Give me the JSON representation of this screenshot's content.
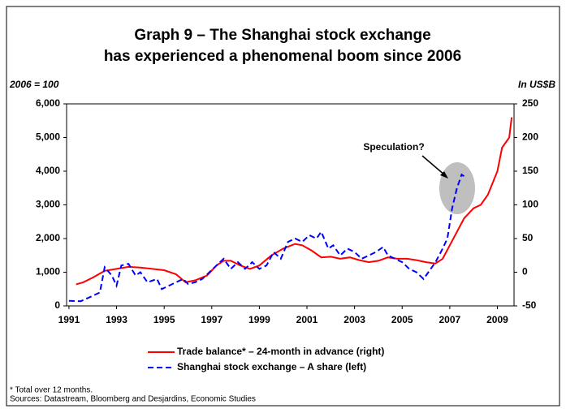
{
  "chart_data": {
    "type": "line",
    "title": "Graph 9 – The Shanghai stock exchange",
    "subtitle": "has experienced a phenomenal boom since 2006",
    "y_label": "2006 = 100",
    "y2_label": "In US$B",
    "annotation": "Speculation?",
    "footnote": "* Total over 12 months.",
    "source": "Sources: Datastream, Bloomberg and Desjardins, Economic Studies",
    "xlim": [
      1990.9,
      2009.7
    ],
    "xticks": [
      1991,
      1993,
      1995,
      1997,
      1999,
      2001,
      2003,
      2005,
      2007,
      2009
    ],
    "ylim": [
      0,
      6000
    ],
    "yticks": [
      0,
      {
        "value": 1000,
        "label": "1,000"
      },
      {
        "value": 2000,
        "label": "2,000"
      },
      {
        "value": 3000,
        "label": "3,000"
      },
      {
        "value": 4000,
        "label": "4,000"
      },
      {
        "value": 5000,
        "label": "5,000"
      },
      {
        "value": 6000,
        "label": "6,000"
      }
    ],
    "y2lim": [
      -50,
      250
    ],
    "y2ticks": [
      -50,
      0,
      50,
      100,
      150,
      200,
      250
    ],
    "series": [
      {
        "name": "Trade balance* – 24-month in advance (right)",
        "color": "#ff0000",
        "axis": "y2",
        "dash": false,
        "x": [
          1991.3,
          1991.6,
          1992.0,
          1992.5,
          1993.0,
          1993.5,
          1994.0,
          1994.5,
          1995.0,
          1995.5,
          1995.9,
          1996.3,
          1996.8,
          1997.2,
          1997.5,
          1997.8,
          1998.2,
          1998.6,
          1999.0,
          1999.5,
          2000.0,
          2000.5,
          2000.8,
          2001.2,
          2001.6,
          2002.0,
          2002.4,
          2002.8,
          2003.2,
          2003.6,
          2004.0,
          2004.4,
          2004.8,
          2005.2,
          2005.6,
          2006.0,
          2006.4,
          2006.7,
          2007.0,
          2007.3,
          2007.6,
          2008.0,
          2008.3,
          2008.6,
          2009.0,
          2009.2,
          2009.5,
          2009.6
        ],
        "values": [
          -18,
          -15,
          -8,
          2,
          5,
          8,
          7,
          5,
          3,
          -3,
          -15,
          -12,
          -5,
          10,
          17,
          17,
          10,
          5,
          10,
          25,
          35,
          42,
          40,
          32,
          22,
          23,
          20,
          22,
          18,
          15,
          17,
          22,
          20,
          20,
          18,
          15,
          13,
          20,
          40,
          60,
          80,
          95,
          100,
          115,
          150,
          185,
          200,
          230
        ]
      },
      {
        "name": "Shanghai stock exchange – A share (left)",
        "color": "#0000ff",
        "axis": "y",
        "dash": true,
        "x": [
          1991.0,
          1991.5,
          1992.0,
          1992.3,
          1992.5,
          1992.8,
          1993.0,
          1993.2,
          1993.5,
          1993.8,
          1994.0,
          1994.3,
          1994.7,
          1994.9,
          1995.2,
          1995.5,
          1995.8,
          1996.0,
          1996.3,
          1996.6,
          1996.9,
          1997.2,
          1997.5,
          1997.8,
          1998.1,
          1998.4,
          1998.7,
          1999.0,
          1999.3,
          1999.6,
          1999.9,
          2000.2,
          2000.5,
          2000.8,
          2001.1,
          2001.4,
          2001.6,
          2001.9,
          2002.1,
          2002.4,
          2002.7,
          2003.0,
          2003.3,
          2003.6,
          2003.9,
          2004.2,
          2004.4,
          2004.7,
          2005.0,
          2005.3,
          2005.6,
          2005.9,
          2006.1,
          2006.4,
          2006.7,
          2006.9,
          2007.1,
          2007.3,
          2007.5,
          2007.6
        ],
        "values": [
          150,
          140,
          300,
          400,
          1150,
          900,
          600,
          1200,
          1250,
          900,
          1000,
          700,
          800,
          500,
          600,
          700,
          800,
          650,
          700,
          800,
          1000,
          1200,
          1400,
          1100,
          1300,
          1100,
          1300,
          1100,
          1200,
          1600,
          1400,
          1900,
          2000,
          1900,
          2100,
          2000,
          2200,
          1700,
          1800,
          1500,
          1700,
          1600,
          1400,
          1500,
          1600,
          1750,
          1500,
          1400,
          1300,
          1100,
          1000,
          800,
          1000,
          1300,
          1700,
          2000,
          2900,
          3500,
          3900,
          3850
        ]
      }
    ]
  }
}
